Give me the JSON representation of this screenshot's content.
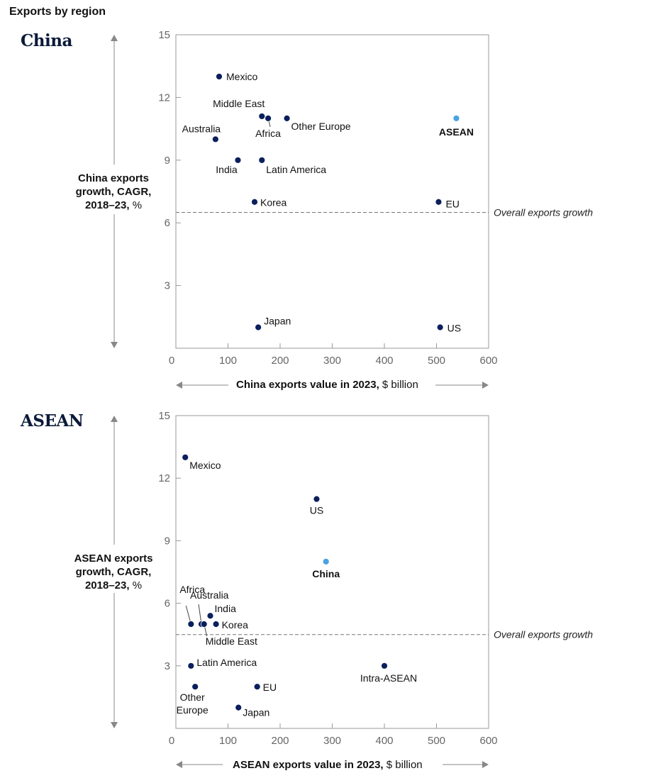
{
  "page_title": "Exports by region",
  "colors": {
    "point": "#0b1f5c",
    "highlight": "#4aa3df",
    "axis": "#888888",
    "frame": "#999999",
    "refline": "#777777"
  },
  "chart_data": [
    {
      "type": "scatter",
      "title": "China",
      "ylabel_bold": "China exports growth, CAGR, 2018–23,",
      "ylabel_unit": "%",
      "xlabel_bold": "China exports value in 2023,",
      "xlabel_unit": "$ billion",
      "xlim": [
        0,
        600
      ],
      "ylim": [
        0,
        15
      ],
      "xticks": [
        "0",
        "100",
        "200",
        "300",
        "400",
        "500",
        "600"
      ],
      "yticks": [
        "3",
        "6",
        "9",
        "12",
        "15"
      ],
      "reference_line": {
        "y": 6.5,
        "label": "Overall exports growth"
      },
      "points": [
        {
          "name": "Mexico",
          "x": 83,
          "y": 13
        },
        {
          "name": "Middle East",
          "x": 165,
          "y": 11.1
        },
        {
          "name": "Africa",
          "x": 177,
          "y": 11
        },
        {
          "name": "Other Europe",
          "x": 213,
          "y": 11
        },
        {
          "name": "ASEAN",
          "x": 538,
          "y": 11,
          "highlight": true
        },
        {
          "name": "Australia",
          "x": 76,
          "y": 10
        },
        {
          "name": "India",
          "x": 119,
          "y": 9
        },
        {
          "name": "Latin America",
          "x": 165,
          "y": 9
        },
        {
          "name": "Korea",
          "x": 151,
          "y": 7
        },
        {
          "name": "EU",
          "x": 504,
          "y": 7
        },
        {
          "name": "Japan",
          "x": 158,
          "y": 1
        },
        {
          "name": "US",
          "x": 507,
          "y": 1
        }
      ]
    },
    {
      "type": "scatter",
      "title": "ASEAN",
      "ylabel_bold": "ASEAN exports growth, CAGR, 2018–23,",
      "ylabel_unit": "%",
      "xlabel_bold": "ASEAN exports value in 2023,",
      "xlabel_unit": "$ billion",
      "xlim": [
        0,
        600
      ],
      "ylim": [
        0,
        15
      ],
      "xticks": [
        "0",
        "100",
        "200",
        "300",
        "400",
        "500",
        "600"
      ],
      "yticks": [
        "3",
        "6",
        "9",
        "12",
        "15"
      ],
      "reference_line": {
        "y": 4.5,
        "label": "Overall exports growth"
      },
      "points": [
        {
          "name": "Mexico",
          "x": 18,
          "y": 13
        },
        {
          "name": "US",
          "x": 270,
          "y": 11
        },
        {
          "name": "China",
          "x": 288,
          "y": 8,
          "highlight": true
        },
        {
          "name": "India",
          "x": 66,
          "y": 5.4
        },
        {
          "name": "Africa",
          "x": 29,
          "y": 5
        },
        {
          "name": "Australia",
          "x": 49,
          "y": 5
        },
        {
          "name": "Middle East",
          "x": 54,
          "y": 5
        },
        {
          "name": "Korea",
          "x": 77,
          "y": 5
        },
        {
          "name": "Latin America",
          "x": 29,
          "y": 3
        },
        {
          "name": "Intra-ASEAN",
          "x": 400,
          "y": 3
        },
        {
          "name": "Other Europe",
          "x": 37,
          "y": 2
        },
        {
          "name": "EU",
          "x": 156,
          "y": 2
        },
        {
          "name": "Japan",
          "x": 120,
          "y": 1
        }
      ]
    }
  ]
}
